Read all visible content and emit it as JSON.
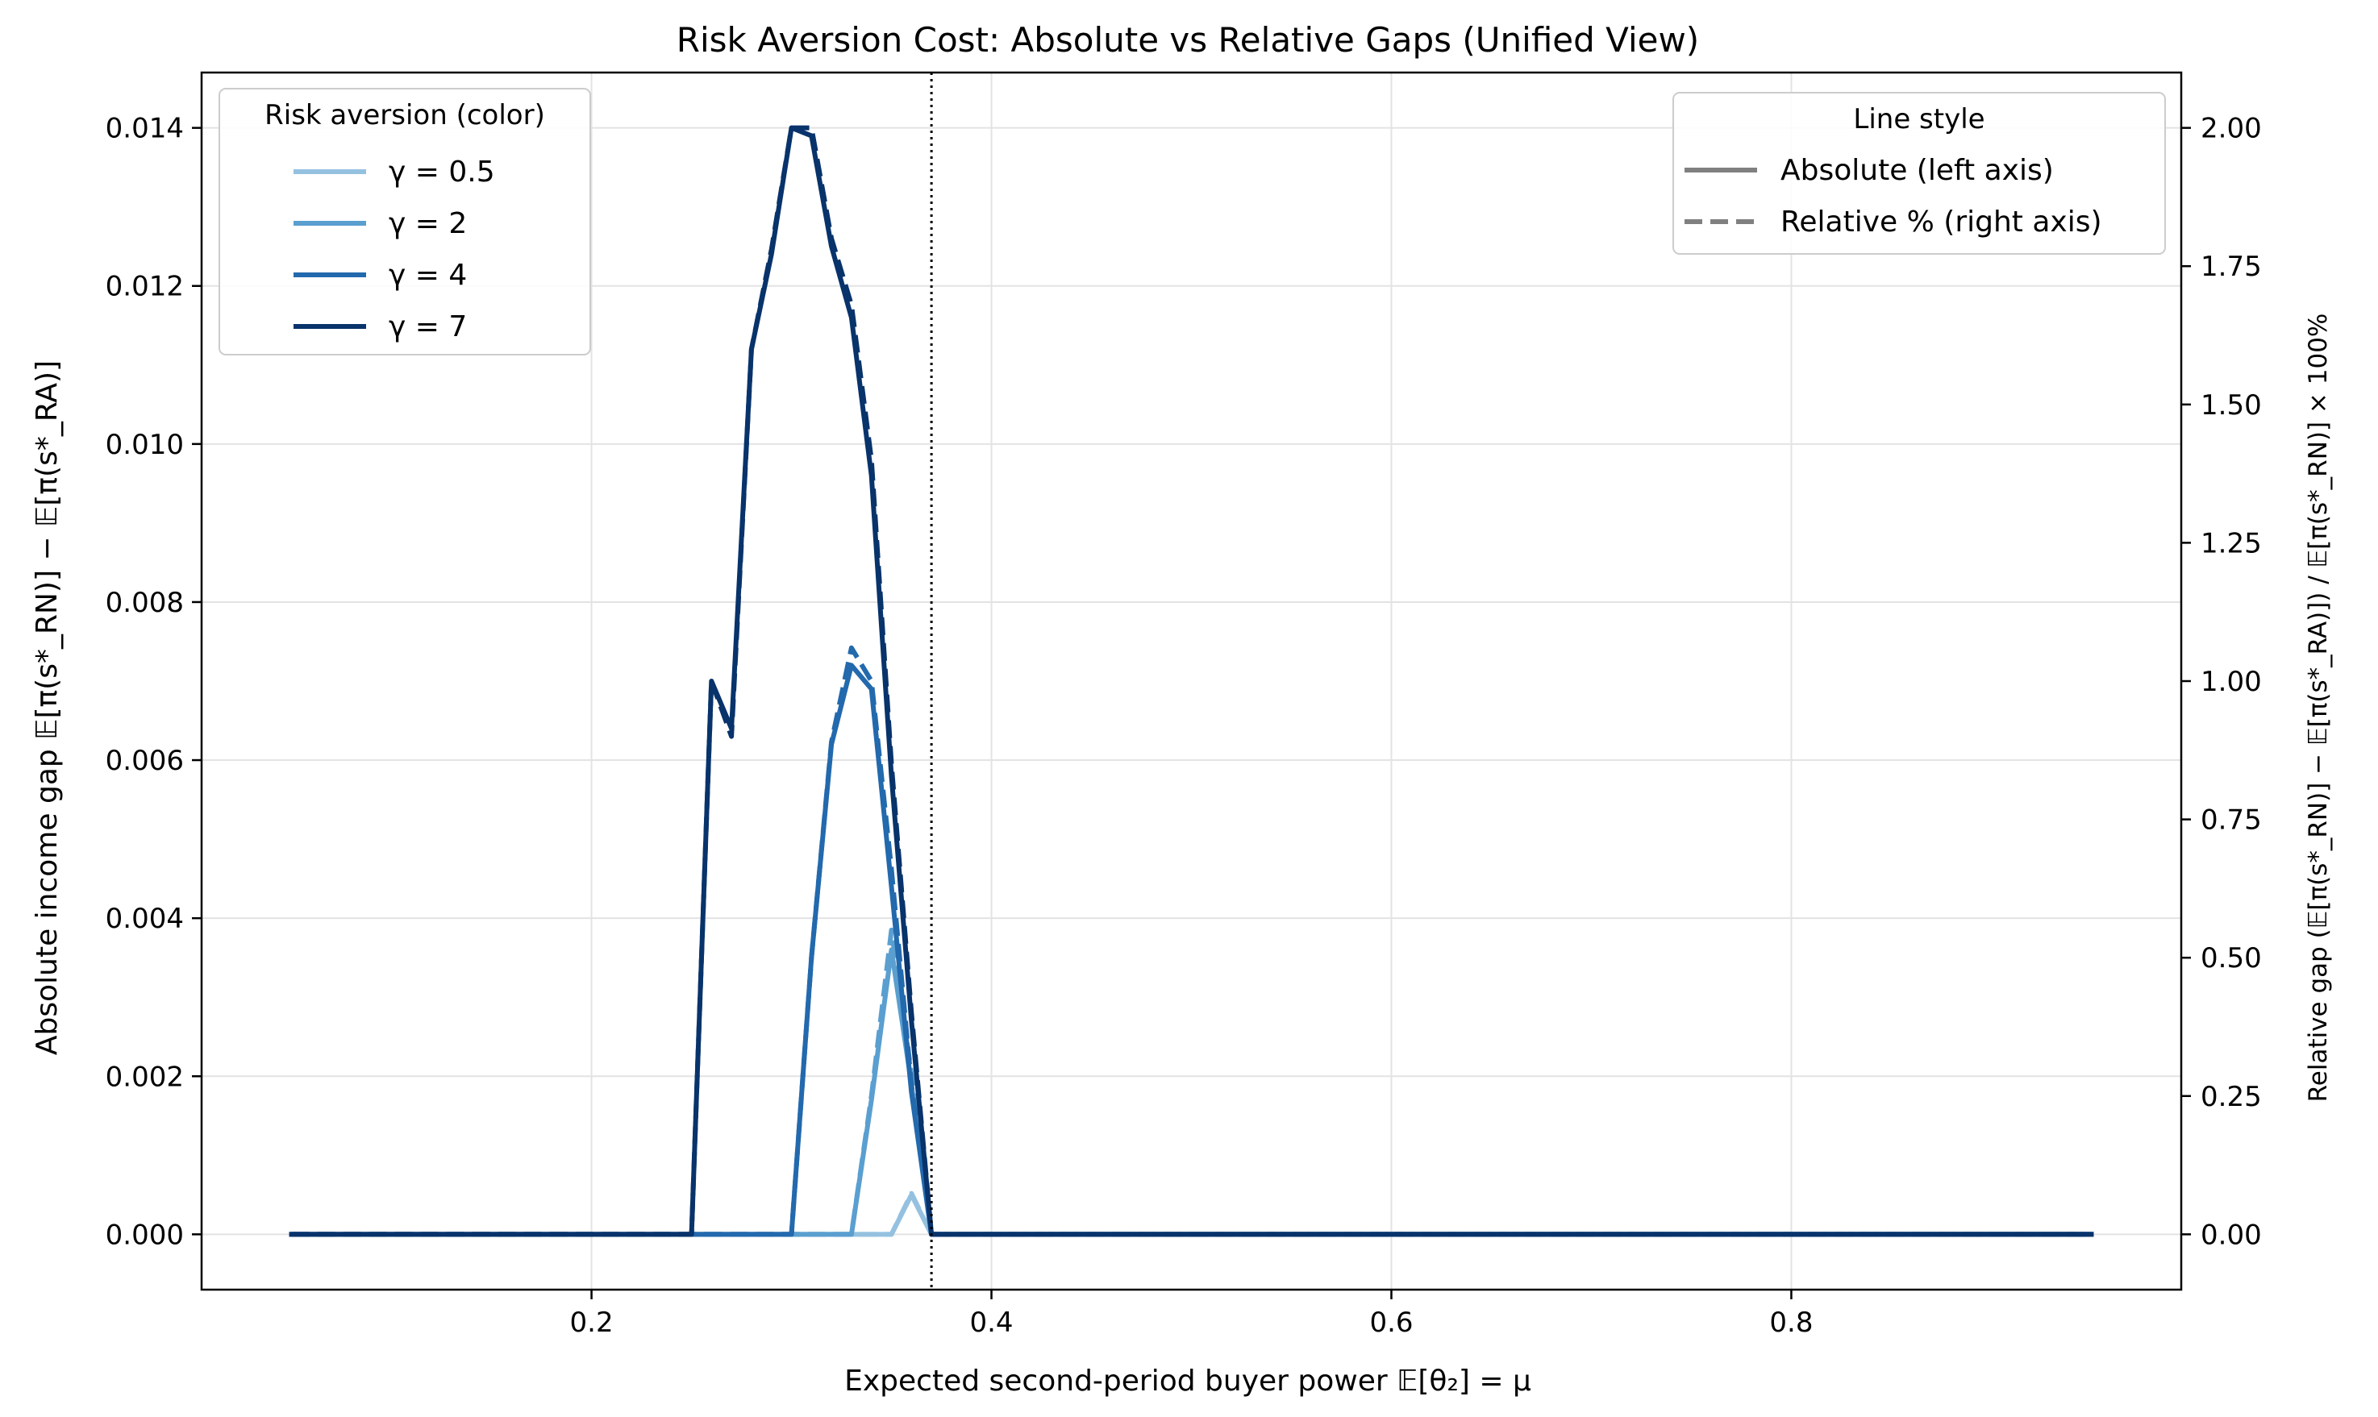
{
  "chart_data": {
    "type": "line",
    "title": "Risk Aversion Cost: Absolute vs Relative Gaps (Unified View)",
    "xlabel": "Expected second-period buyer power 𝔼[θ₂] = μ",
    "ylabel_left": "Absolute income gap  𝔼[π(s*_RN)] − 𝔼[π(s*_RA)]",
    "ylabel_right": "Relative gap  (𝔼[π(s*_RN)] − 𝔼[π(s*_RA)]) / 𝔼[π(s*_RN)] × 100%",
    "xlim": [
      0.005,
      0.995
    ],
    "ylim_left": [
      -0.0007,
      0.0147
    ],
    "ylim_right": [
      -0.1,
      2.1
    ],
    "xticks": [
      0.2,
      0.4,
      0.6,
      0.8
    ],
    "yticks_left": [
      0.0,
      0.002,
      0.004,
      0.006,
      0.008,
      0.01,
      0.012,
      0.014
    ],
    "yticks_left_labels": [
      "0.000",
      "0.002",
      "0.004",
      "0.006",
      "0.008",
      "0.010",
      "0.012",
      "0.014"
    ],
    "yticks_right": [
      0.0,
      0.25,
      0.5,
      0.75,
      1.0,
      1.25,
      1.5,
      1.75,
      2.0
    ],
    "yticks_right_labels": [
      "0.00",
      "0.25",
      "0.50",
      "0.75",
      "1.00",
      "1.25",
      "1.50",
      "1.75",
      "2.00"
    ],
    "grid": true,
    "vline_x": 0.37,
    "color_legend": {
      "title": "Risk aversion (color)",
      "placement": "upper-left",
      "entries": [
        "γ = 0.5",
        "γ = 2",
        "γ = 4",
        "γ = 7"
      ]
    },
    "style_legend": {
      "title": "Line style",
      "placement": "upper-right",
      "entries": [
        "Absolute (left axis)",
        "Relative % (right axis)"
      ]
    },
    "series": [
      {
        "name": "γ = 0.5",
        "color": "#95c1e0",
        "absolute": [
          [
            0.05,
            0
          ],
          [
            0.35,
            0
          ],
          [
            0.36,
            0.0005
          ],
          [
            0.37,
            0
          ],
          [
            0.95,
            0
          ]
        ],
        "relative": [
          [
            0.05,
            0
          ],
          [
            0.35,
            0
          ],
          [
            0.36,
            0.074
          ],
          [
            0.37,
            0
          ],
          [
            0.95,
            0
          ]
        ]
      },
      {
        "name": "γ = 2",
        "color": "#5a9fd0",
        "absolute": [
          [
            0.05,
            0
          ],
          [
            0.33,
            0
          ],
          [
            0.34,
            0.0017
          ],
          [
            0.35,
            0.0036
          ],
          [
            0.36,
            0.0019
          ],
          [
            0.37,
            0
          ],
          [
            0.95,
            0
          ]
        ],
        "relative": [
          [
            0.05,
            0
          ],
          [
            0.33,
            0
          ],
          [
            0.34,
            0.25
          ],
          [
            0.35,
            0.55
          ],
          [
            0.36,
            0.29
          ],
          [
            0.37,
            0
          ],
          [
            0.95,
            0
          ]
        ]
      },
      {
        "name": "γ = 4",
        "color": "#2369ad",
        "absolute": [
          [
            0.05,
            0
          ],
          [
            0.3,
            0
          ],
          [
            0.31,
            0.0035
          ],
          [
            0.32,
            0.0062
          ],
          [
            0.33,
            0.0072
          ],
          [
            0.34,
            0.0069
          ],
          [
            0.35,
            0.0044
          ],
          [
            0.36,
            0.0018
          ],
          [
            0.37,
            0
          ],
          [
            0.95,
            0
          ]
        ],
        "relative": [
          [
            0.05,
            0
          ],
          [
            0.3,
            0
          ],
          [
            0.31,
            0.5
          ],
          [
            0.32,
            0.89
          ],
          [
            0.33,
            1.06
          ],
          [
            0.34,
            1.0
          ],
          [
            0.35,
            0.66
          ],
          [
            0.36,
            0.27
          ],
          [
            0.37,
            0
          ],
          [
            0.95,
            0
          ]
        ]
      },
      {
        "name": "γ = 7",
        "color": "#08336b",
        "absolute": [
          [
            0.05,
            0
          ],
          [
            0.25,
            0
          ],
          [
            0.26,
            0.007
          ],
          [
            0.27,
            0.0064
          ],
          [
            0.28,
            0.0112
          ],
          [
            0.29,
            0.0124
          ],
          [
            0.3,
            0.014
          ],
          [
            0.31,
            0.0139
          ],
          [
            0.32,
            0.0125
          ],
          [
            0.33,
            0.0116
          ],
          [
            0.34,
            0.0096
          ],
          [
            0.35,
            0.0058
          ],
          [
            0.36,
            0.0027
          ],
          [
            0.37,
            0
          ],
          [
            0.95,
            0
          ]
        ],
        "relative": [
          [
            0.05,
            0
          ],
          [
            0.25,
            0
          ],
          [
            0.26,
            1.0
          ],
          [
            0.27,
            0.9
          ],
          [
            0.28,
            1.6
          ],
          [
            0.29,
            1.78
          ],
          [
            0.3,
            2.0
          ],
          [
            0.31,
            2.0
          ],
          [
            0.32,
            1.8
          ],
          [
            0.33,
            1.68
          ],
          [
            0.34,
            1.4
          ],
          [
            0.35,
            0.85
          ],
          [
            0.36,
            0.4
          ],
          [
            0.37,
            0
          ],
          [
            0.95,
            0
          ]
        ]
      }
    ]
  }
}
